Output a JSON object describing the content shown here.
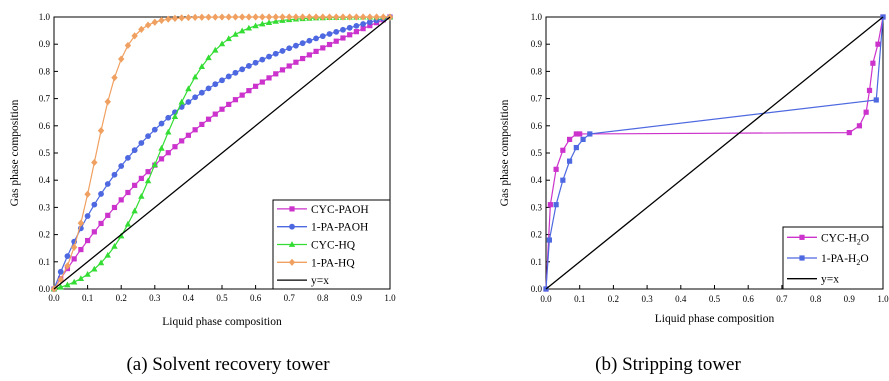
{
  "chart_data": [
    {
      "type": "line",
      "caption": "(a) Solvent recovery tower",
      "xlabel": "Liquid phase composition",
      "ylabel": "Gas phase composition",
      "xlim": [
        0,
        1
      ],
      "ylim": [
        0,
        1
      ],
      "xticks": [
        "0.0",
        "0.1",
        "0.2",
        "0.3",
        "0.4",
        "0.5",
        "0.6",
        "0.7",
        "0.8",
        "0.9",
        "1.0"
      ],
      "yticks": [
        "0.0",
        "0.1",
        "0.2",
        "0.3",
        "0.4",
        "0.5",
        "0.6",
        "0.7",
        "0.8",
        "0.9",
        "1.0"
      ],
      "grid": false,
      "legend_position": "bottom-right",
      "series": [
        {
          "name": "CYC-PAOH",
          "color": "#cc33cc",
          "marker": "square",
          "model": {
            "kind": "vle",
            "alpha": 1.95
          }
        },
        {
          "name": "1-PA-PAOH",
          "color": "#4d68e0",
          "marker": "circle",
          "model": {
            "kind": "vle",
            "alpha": 3.3
          }
        },
        {
          "name": "CYC-HQ",
          "color": "#33dd33",
          "marker": "triangle",
          "model": {
            "kind": "sigmoid",
            "a": 0.31,
            "b": 0.085
          }
        },
        {
          "name": "1-PA-HQ",
          "color": "#f0a060",
          "marker": "diamond",
          "model": {
            "kind": "sigmoid",
            "a": 0.12,
            "b": 0.045
          }
        },
        {
          "name": "y=x",
          "color": "#000000",
          "marker": "none",
          "x": [
            0,
            1
          ],
          "y": [
            0,
            1
          ]
        }
      ]
    },
    {
      "type": "line",
      "caption": "(b) Stripping tower",
      "xlabel": "Liquid phase composition",
      "ylabel": "Gas phase composition",
      "xlim": [
        0,
        1
      ],
      "ylim": [
        0,
        1
      ],
      "xticks": [
        "0.0",
        "0.1",
        "0.2",
        "0.3",
        "0.4",
        "0.5",
        "0.6",
        "0.7",
        "0.8",
        "0.9",
        "1.0"
      ],
      "yticks": [
        "0.0",
        "0.1",
        "0.2",
        "0.3",
        "0.4",
        "0.5",
        "0.6",
        "0.7",
        "0.8",
        "0.9",
        "1.0"
      ],
      "grid": false,
      "legend_position": "bottom-right",
      "series": [
        {
          "name": "CYC-H",
          "name_sub": "2",
          "name_tail": "O",
          "color": "#cc33cc",
          "marker": "square",
          "x": [
            0,
            0.013,
            0.03,
            0.05,
            0.07,
            0.09,
            0.1,
            0.9,
            0.93,
            0.95,
            0.96,
            0.97,
            0.985,
            1.0
          ],
          "y": [
            0,
            0.31,
            0.44,
            0.51,
            0.55,
            0.57,
            0.57,
            0.575,
            0.6,
            0.65,
            0.73,
            0.83,
            0.9,
            1.0
          ]
        },
        {
          "name": "1-PA-H",
          "name_sub": "2",
          "name_tail": "O",
          "color": "#4d68e0",
          "marker": "square",
          "x": [
            0,
            0.01,
            0.03,
            0.05,
            0.07,
            0.09,
            0.11,
            0.13,
            0.98,
            1.0
          ],
          "y": [
            0,
            0.18,
            0.31,
            0.4,
            0.47,
            0.52,
            0.55,
            0.57,
            0.695,
            1.0
          ]
        },
        {
          "name": "y=x",
          "color": "#000000",
          "marker": "none",
          "x": [
            0,
            1
          ],
          "y": [
            0,
            1
          ]
        }
      ]
    }
  ]
}
